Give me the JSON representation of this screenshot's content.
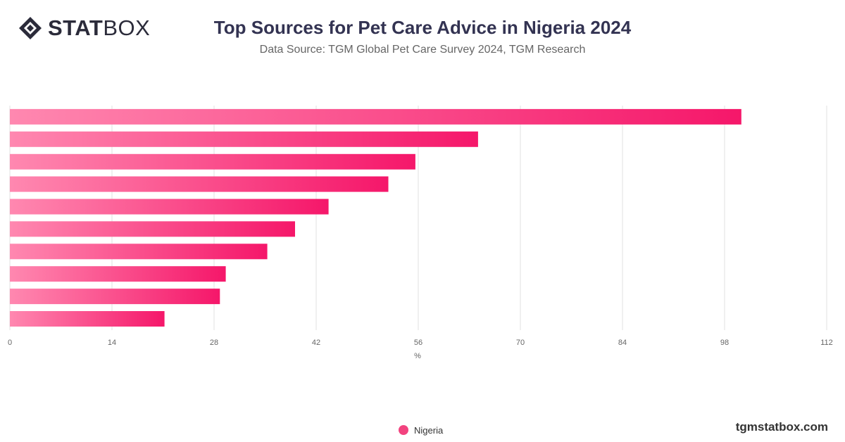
{
  "brand": {
    "logo_bold": "STAT",
    "logo_regular": "BOX",
    "site": "tgmstatbox.com"
  },
  "title": "Top Sources for Pet Care Advice in Nigeria 2024",
  "subtitle": "Data Source: TGM Global Pet Care Survey 2024, TGM Research",
  "colors": {
    "bar_start": "#ff88b0",
    "bar_end": "#f5176a",
    "legend": "#f2437f",
    "grid": "#e0e0e0"
  },
  "chart_data": {
    "type": "bar",
    "orientation": "horizontal",
    "series": [
      {
        "name": "Nigeria",
        "values": [
          100.3,
          64.2,
          55.6,
          51.9,
          43.7,
          39.1,
          35.3,
          29.6,
          28.8,
          21.2
        ]
      }
    ],
    "xlabel": "%",
    "xlim": [
      0,
      112
    ],
    "xticks": [
      "0",
      "14",
      "28",
      "42",
      "56",
      "70",
      "84",
      "98",
      "112"
    ],
    "grid": true,
    "legend_position": "bottom"
  }
}
